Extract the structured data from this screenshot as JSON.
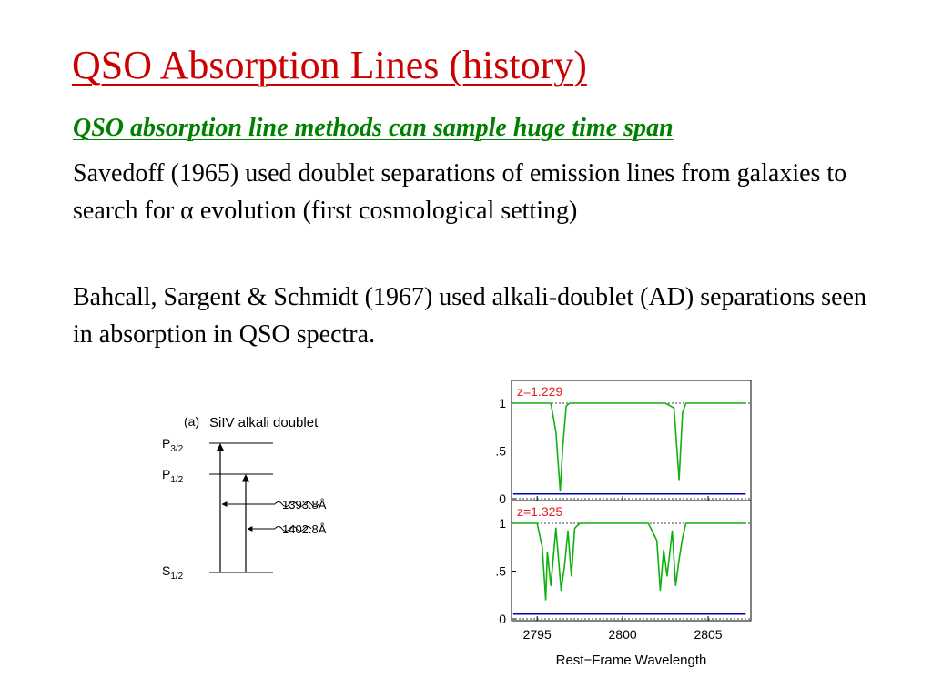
{
  "slide": {
    "title": "QSO Absorption Lines (history)",
    "subtitle": "QSO absorption line methods can sample huge time span",
    "paragraph1": {
      "before": "Savedoff (1965) used doublet separations of emission lines from galaxies to search for ",
      "symbol": "α",
      "after": " evolution  (first cosmological setting)"
    },
    "paragraph2": "Bahcall, Sargent & Schmidt (1967) used alkali-doublet (AD) separations seen in absorption in QSO spectra."
  },
  "energy_diagram": {
    "panel_tag": "(a)",
    "title": "SiIV alkali doublet",
    "levels": [
      {
        "term": "P",
        "sub": "3/2"
      },
      {
        "term": "P",
        "sub": "1/2"
      },
      {
        "term": "S",
        "sub": "1/2"
      }
    ],
    "transitions": [
      "1393.8Å",
      "1402.8Å"
    ]
  },
  "chart_data": {
    "type": "line",
    "xlabel": "Rest−Frame Wavelength",
    "xlim": [
      2793.5,
      2807.5
    ],
    "x_ticks": [
      "2795",
      "2800",
      "2805"
    ],
    "ylim": [
      0,
      1.2
    ],
    "y_ticks": [
      "0",
      ".5",
      "1"
    ],
    "colors": {
      "flux": "#10b010",
      "error": "#0000bb",
      "annotation": "#e02020"
    },
    "panels": [
      {
        "label": "z=1.229",
        "flux_x": [
          2793.6,
          2795.8,
          2796.1,
          2796.35,
          2796.5,
          2796.7,
          2796.9,
          2802.5,
          2803.0,
          2803.3,
          2803.5,
          2803.7,
          2804.0,
          2807.2
        ],
        "flux_y": [
          1.0,
          1.0,
          0.7,
          0.08,
          0.55,
          0.97,
          1.0,
          1.0,
          0.95,
          0.2,
          0.9,
          1.0,
          1.0,
          1.0
        ],
        "error_y": 0.05
      },
      {
        "label": "z=1.325",
        "flux_x": [
          2793.6,
          2795.0,
          2795.3,
          2795.5,
          2795.6,
          2795.8,
          2796.1,
          2796.4,
          2796.6,
          2796.8,
          2797.0,
          2797.2,
          2797.5,
          2801.5,
          2802.0,
          2802.2,
          2802.4,
          2802.6,
          2802.9,
          2803.1,
          2803.3,
          2803.5,
          2803.7,
          2807.2
        ],
        "flux_y": [
          1.0,
          1.0,
          0.75,
          0.2,
          0.7,
          0.35,
          0.95,
          0.3,
          0.55,
          0.92,
          0.45,
          0.95,
          1.0,
          1.0,
          0.82,
          0.3,
          0.72,
          0.45,
          0.92,
          0.35,
          0.62,
          0.85,
          1.0,
          1.0
        ],
        "error_y": 0.05
      }
    ]
  }
}
